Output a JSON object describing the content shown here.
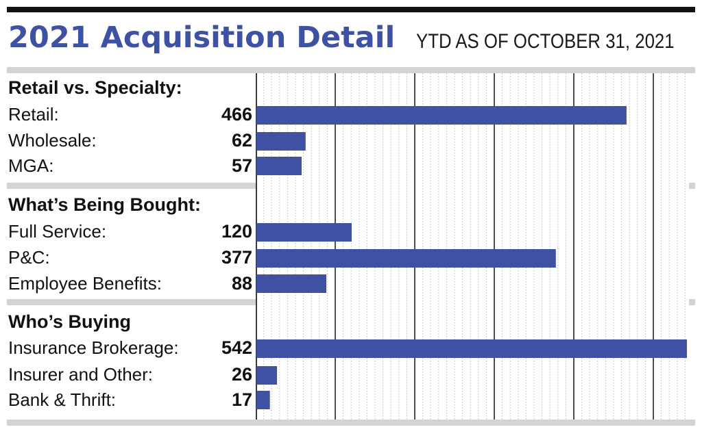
{
  "header": {
    "title": "2021 Acquisition Detail",
    "subtitle": "YTD AS OF OCTOBER 31, 2021"
  },
  "colors": {
    "accent": "#3f51a2",
    "bar": "#3f51a2",
    "divider": "#d4d4d4"
  },
  "chart_data": {
    "type": "bar",
    "orientation": "horizontal",
    "title": "2021 Acquisition Detail",
    "subtitle": "YTD AS OF OCTOBER 31, 2021",
    "xlim": [
      0,
      542
    ],
    "grid": true,
    "groups": [
      {
        "title": "Retail vs. Specialty:",
        "categories": [
          "Retail:",
          "Wholesale:",
          "MGA:"
        ],
        "values": [
          466,
          62,
          57
        ]
      },
      {
        "title": "What’s Being Bought:",
        "categories": [
          "Full Service:",
          "P&C:",
          "Employee Benefits:"
        ],
        "values": [
          120,
          377,
          88
        ]
      },
      {
        "title": "Who’s Buying",
        "categories": [
          "Insurance Brokerage:",
          "Insurer and Other:",
          "Bank & Thrift:"
        ],
        "values": [
          542,
          26,
          17
        ]
      }
    ]
  }
}
